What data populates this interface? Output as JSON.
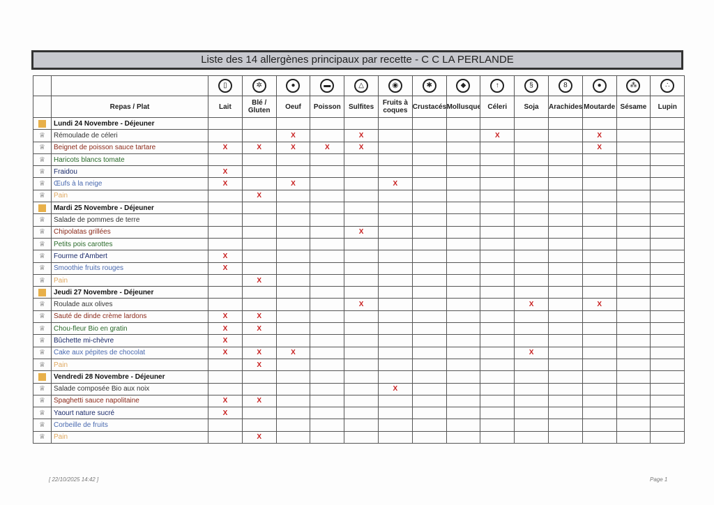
{
  "title": "Liste des 14 allergènes principaux par recette   - C C  LA PERLANDE",
  "header_col": "Repas / Plat",
  "allergens": [
    {
      "label": "Lait",
      "icon": "milk-icon",
      "glyph": "▯"
    },
    {
      "label": "Blé / Gluten",
      "icon": "wheat-icon",
      "glyph": "✲"
    },
    {
      "label": "Oeuf",
      "icon": "egg-icon",
      "glyph": "●"
    },
    {
      "label": "Poisson",
      "icon": "fish-icon",
      "glyph": "▬"
    },
    {
      "label": "Sulfites",
      "icon": "flask-icon",
      "glyph": "△"
    },
    {
      "label": "Fruits à coques",
      "icon": "nut-icon",
      "glyph": "◉"
    },
    {
      "label": "Crustacés",
      "icon": "crab-icon",
      "glyph": "✱"
    },
    {
      "label": "Mollusques",
      "icon": "shell-icon",
      "glyph": "◆"
    },
    {
      "label": "Céleri",
      "icon": "celery-icon",
      "glyph": "↑"
    },
    {
      "label": "Soja",
      "icon": "soy-icon",
      "glyph": "§"
    },
    {
      "label": "Arachides",
      "icon": "peanut-icon",
      "glyph": "8"
    },
    {
      "label": "Moutarde",
      "icon": "mustard-icon",
      "glyph": "●"
    },
    {
      "label": "Sésame",
      "icon": "sesame-icon",
      "glyph": "⁂"
    },
    {
      "label": "Lupin",
      "icon": "lupin-icon",
      "glyph": "∴"
    }
  ],
  "colors": {
    "starter": "#333333",
    "main": "#8b2a1a",
    "veg": "#2a6a2a",
    "cheese": "#1a2a6a",
    "dessert": "#4a6ab0",
    "bread": "#e0a860",
    "mark": "#c82020",
    "day": "#e8b04a"
  },
  "mark": "X",
  "rows": [
    {
      "type": "day",
      "name": "Lundi 24 Novembre - Déjeuner"
    },
    {
      "type": "starter",
      "name": "Rémoulade de céleri",
      "x": [
        2,
        4,
        8,
        11
      ]
    },
    {
      "type": "main",
      "name": "Beignet de poisson sauce tartare",
      "x": [
        0,
        1,
        2,
        3,
        4,
        11
      ]
    },
    {
      "type": "veg",
      "name": "Haricots blancs tomate",
      "x": []
    },
    {
      "type": "cheese",
      "name": "Fraidou",
      "x": [
        0
      ]
    },
    {
      "type": "dessert",
      "name": "Œufs à la neige",
      "x": [
        0,
        2,
        5
      ]
    },
    {
      "type": "bread",
      "name": "Pain",
      "x": [
        1
      ]
    },
    {
      "type": "day",
      "name": "Mardi 25 Novembre - Déjeuner"
    },
    {
      "type": "starter",
      "name": "Salade de pommes de terre",
      "x": []
    },
    {
      "type": "main",
      "name": "Chipolatas grillées",
      "x": [
        4
      ]
    },
    {
      "type": "veg",
      "name": "Petits pois carottes",
      "x": []
    },
    {
      "type": "cheese",
      "name": "Fourme d'Ambert",
      "x": [
        0
      ]
    },
    {
      "type": "dessert",
      "name": "Smoothie fruits rouges",
      "x": [
        0
      ]
    },
    {
      "type": "bread",
      "name": "Pain",
      "x": [
        1
      ]
    },
    {
      "type": "day",
      "name": "Jeudi 27 Novembre - Déjeuner"
    },
    {
      "type": "starter",
      "name": "Roulade aux olives",
      "x": [
        4,
        9,
        11
      ]
    },
    {
      "type": "main",
      "name": "Sauté de dinde crème lardons",
      "x": [
        0,
        1
      ]
    },
    {
      "type": "veg",
      "name": "Chou-fleur Bio en gratin",
      "x": [
        0,
        1
      ]
    },
    {
      "type": "cheese",
      "name": "Bûchette mi-chèvre",
      "x": [
        0
      ]
    },
    {
      "type": "dessert",
      "name": "Cake aux pépites de chocolat",
      "x": [
        0,
        1,
        2,
        9
      ]
    },
    {
      "type": "bread",
      "name": "Pain",
      "x": [
        1
      ]
    },
    {
      "type": "day",
      "name": "Vendredi 28 Novembre - Déjeuner"
    },
    {
      "type": "starter",
      "name": "Salade composée Bio aux noix",
      "x": [
        5
      ]
    },
    {
      "type": "main",
      "name": "Spaghetti sauce napolitaine",
      "x": [
        0,
        1
      ]
    },
    {
      "type": "cheese",
      "name": "Yaourt nature sucré",
      "x": [
        0
      ]
    },
    {
      "type": "dessert",
      "name": "Corbeille de fruits",
      "x": []
    },
    {
      "type": "bread",
      "name": "Pain",
      "x": [
        1
      ]
    }
  ],
  "footer": {
    "date": "[ 22/10/2025   14:42 ]",
    "page": "Page 1"
  }
}
